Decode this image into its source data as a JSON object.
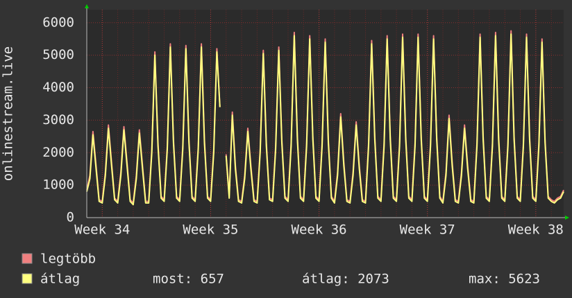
{
  "chart_data": {
    "type": "line",
    "y_label": "onlinestream.live",
    "categories": [
      null,
      null,
      null,
      null,
      null,
      "Week 34",
      null,
      null,
      null,
      null,
      null,
      null,
      null,
      null,
      null,
      null,
      null,
      null,
      null,
      null,
      null,
      null,
      null,
      null,
      null,
      null,
      null,
      null,
      null,
      null,
      null,
      null,
      null,
      null,
      null,
      null,
      null,
      null,
      null,
      null,
      "Week 35",
      null,
      null,
      null,
      null,
      null,
      null,
      null,
      null,
      null,
      null,
      null,
      null,
      null,
      null,
      null,
      null,
      null,
      null,
      null,
      null,
      null,
      null,
      null,
      null,
      null,
      null,
      null,
      null,
      null,
      null,
      null,
      null,
      null,
      null,
      "Week 36",
      null,
      null,
      null,
      null,
      null,
      null,
      null,
      null,
      null,
      null,
      null,
      null,
      null,
      null,
      null,
      null,
      null,
      null,
      null,
      null,
      null,
      null,
      null,
      null,
      null,
      null,
      null,
      null,
      null,
      null,
      null,
      null,
      null,
      null,
      "Week 37",
      null,
      null,
      null,
      null,
      null,
      null,
      null,
      null,
      null,
      null,
      null,
      null,
      null,
      null,
      null,
      null,
      null,
      null,
      null,
      null,
      null,
      null,
      null,
      null,
      null,
      null,
      null,
      null,
      null,
      null,
      null,
      null,
      null,
      null,
      "Week 38",
      null,
      null,
      null,
      null,
      null,
      null,
      null,
      null,
      null
    ],
    "series": [
      {
        "name": "legtöbb",
        "color": "#f08080",
        "values": [
          850,
          1300,
          2650,
          1600,
          550,
          500,
          1400,
          2850,
          1700,
          600,
          500,
          1400,
          2800,
          1700,
          550,
          450,
          1300,
          2700,
          1600,
          500,
          500,
          2100,
          5100,
          2300,
          650,
          550,
          2200,
          5350,
          2400,
          650,
          550,
          2200,
          5300,
          2400,
          650,
          550,
          2200,
          5350,
          2400,
          650,
          550,
          2100,
          5200,
          3400,
          null,
          1950,
          700,
          3250,
          1600,
          550,
          500,
          1300,
          2750,
          1600,
          550,
          500,
          2100,
          5150,
          2300,
          600,
          550,
          2200,
          5250,
          2400,
          650,
          550,
          2300,
          5700,
          2500,
          650,
          550,
          2300,
          5600,
          2500,
          650,
          550,
          2300,
          5500,
          2400,
          650,
          500,
          1400,
          3200,
          1700,
          550,
          500,
          1400,
          2950,
          1600,
          550,
          500,
          2300,
          5450,
          2500,
          650,
          550,
          2300,
          5600,
          2500,
          650,
          550,
          2300,
          5650,
          2500,
          650,
          550,
          2300,
          5650,
          2500,
          650,
          550,
          2300,
          5600,
          2500,
          650,
          500,
          1400,
          3150,
          1700,
          550,
          500,
          1400,
          2850,
          1600,
          550,
          500,
          2300,
          5650,
          2500,
          650,
          550,
          2300,
          5700,
          2500,
          650,
          550,
          2300,
          5750,
          2500,
          650,
          550,
          2300,
          5650,
          2500,
          650,
          550,
          2300,
          5500,
          2400,
          650,
          550,
          500,
          600,
          650,
          850
        ]
      },
      {
        "name": "átlag",
        "color": "#ffff80",
        "values": [
          800,
          1200,
          2550,
          1500,
          500,
          450,
          1300,
          2750,
          1600,
          550,
          450,
          1300,
          2700,
          1600,
          500,
          400,
          1200,
          2600,
          1500,
          450,
          450,
          2000,
          5000,
          2200,
          600,
          500,
          2100,
          5250,
          2300,
          600,
          500,
          2100,
          5200,
          2300,
          600,
          500,
          2100,
          5250,
          2300,
          600,
          500,
          2000,
          5100,
          3400,
          null,
          1900,
          600,
          3150,
          1500,
          500,
          450,
          1200,
          2650,
          1500,
          500,
          450,
          2000,
          5050,
          2200,
          550,
          500,
          2100,
          5150,
          2300,
          600,
          500,
          2200,
          5600,
          2400,
          600,
          500,
          2200,
          5500,
          2400,
          600,
          500,
          2200,
          5400,
          2300,
          600,
          450,
          1300,
          3100,
          1600,
          500,
          450,
          1300,
          2850,
          1500,
          500,
          450,
          2200,
          5350,
          2400,
          600,
          500,
          2200,
          5500,
          2400,
          600,
          500,
          2200,
          5550,
          2400,
          600,
          500,
          2200,
          5550,
          2400,
          600,
          500,
          2200,
          5500,
          2400,
          600,
          450,
          1300,
          3050,
          1600,
          500,
          450,
          1300,
          2750,
          1500,
          500,
          450,
          2200,
          5550,
          2400,
          600,
          500,
          2200,
          5600,
          2400,
          600,
          500,
          2200,
          5650,
          2400,
          600,
          500,
          2200,
          5550,
          2400,
          600,
          500,
          2200,
          5400,
          2300,
          600,
          500,
          450,
          550,
          600,
          800
        ]
      }
    ],
    "ylim": [
      0,
      6400
    ],
    "yticks": [
      0,
      1000,
      2000,
      3000,
      4000,
      5000,
      6000
    ],
    "grid": true,
    "stats": [
      "most: 657",
      "átlag: 2073",
      "max: 5623"
    ]
  }
}
